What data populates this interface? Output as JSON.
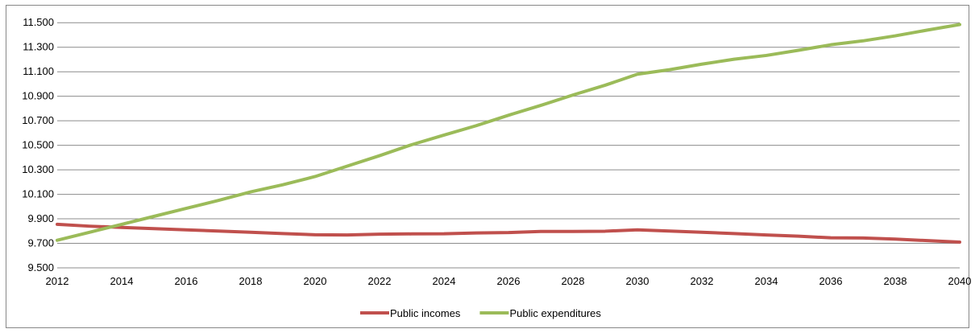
{
  "chart_data": {
    "type": "line",
    "x": [
      2012,
      2013,
      2014,
      2015,
      2016,
      2017,
      2018,
      2019,
      2020,
      2021,
      2022,
      2023,
      2024,
      2025,
      2026,
      2027,
      2028,
      2029,
      2030,
      2031,
      2032,
      2033,
      2034,
      2035,
      2036,
      2037,
      2038,
      2039,
      2040
    ],
    "xticks": [
      "2012",
      "2014",
      "2016",
      "2018",
      "2020",
      "2022",
      "2024",
      "2026",
      "2028",
      "2030",
      "2032",
      "2034",
      "2036",
      "2038",
      "2040"
    ],
    "yticks": [
      "9.500",
      "9.700",
      "9.900",
      "10.100",
      "10.300",
      "10.500",
      "10.700",
      "10.900",
      "11.100",
      "11.300",
      "11.500"
    ],
    "ylim": [
      9500,
      11600
    ],
    "grid": true,
    "legend_position": "bottom",
    "series": [
      {
        "name": "Public incomes",
        "color": "#c0504d",
        "values": [
          9855,
          9840,
          9830,
          9820,
          9810,
          9800,
          9790,
          9780,
          9770,
          9768,
          9775,
          9777,
          9778,
          9785,
          9788,
          9797,
          9797,
          9799,
          9810,
          9800,
          9790,
          9780,
          9768,
          9758,
          9745,
          9744,
          9735,
          9722,
          9710
        ]
      },
      {
        "name": "Public expenditures",
        "color": "#9bbb59",
        "values": [
          9725,
          9790,
          9855,
          9920,
          9985,
          10050,
          10120,
          10178,
          10245,
          10330,
          10415,
          10505,
          10583,
          10660,
          10745,
          10825,
          10910,
          10990,
          11080,
          11117,
          11162,
          11202,
          11233,
          11275,
          11320,
          11352,
          11393,
          11440,
          11485
        ]
      }
    ]
  }
}
